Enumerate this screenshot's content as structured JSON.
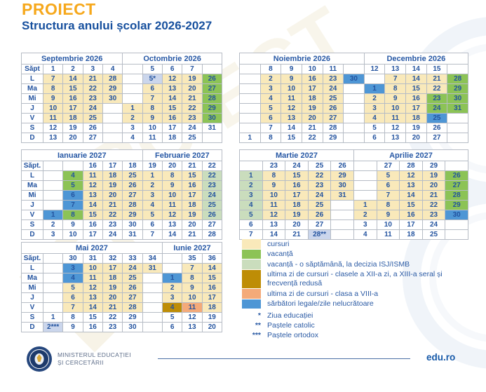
{
  "header": {
    "badge": "PROIECT",
    "title": "Structura anului școlar 2026-2027"
  },
  "watermark_text": "PROIECT",
  "colors": {
    "accent_orange": "#f6a81c",
    "title_blue": "#17509e",
    "table_text_blue": "#23539f",
    "cell_colors": {
      "y": "#f9e9ba",
      "g": "#8cc356",
      "lg": "#caddbd",
      "b": "#4e96d5",
      "lb": "#cbd6ec",
      "o": "#be8d06",
      "s": "#f4aa79"
    }
  },
  "calendars": [
    {
      "months": [
        {
          "label": "Septembrie 2026",
          "span": 5
        },
        {
          "label": "Octombrie 2026",
          "span": 5
        }
      ],
      "week_label": "Săpt",
      "day_labels": [
        "L",
        "Ma",
        "Mi",
        "J",
        "V",
        "S",
        "D"
      ],
      "week_row": [
        "1",
        "2",
        "3",
        "4",
        "",
        "5",
        "6",
        "7",
        ""
      ],
      "rows": [
        [
          "7|y",
          "14|y",
          "21|y",
          "28|y",
          "",
          "5*|lb",
          "12|y",
          "19|y",
          "26|g"
        ],
        [
          "8|y",
          "15|y",
          "22|y",
          "29|y",
          "",
          "6|y",
          "13|y",
          "20|y",
          "27|g"
        ],
        [
          "9|y",
          "16|y",
          "23|y",
          "30|y",
          "",
          "7|y",
          "14|y",
          "21|y",
          "28|g"
        ],
        [
          "10|y",
          "17|y",
          "24|y",
          "",
          "1|y",
          "8|y",
          "15|y",
          "22|y",
          "29|g"
        ],
        [
          "11|y",
          "18|y",
          "25|y",
          "",
          "2|y",
          "9|y",
          "16|y",
          "23|y",
          "30|g"
        ],
        [
          "12",
          "19",
          "26",
          "",
          "3",
          "10",
          "17",
          "24",
          "31"
        ],
        [
          "13",
          "20",
          "27",
          "",
          "4",
          "11",
          "18",
          "25",
          ""
        ]
      ]
    },
    {
      "months": [
        {
          "label": "Noiembrie 2026",
          "span": 6
        },
        {
          "label": "Decembrie 2026",
          "span": 5
        }
      ],
      "week_label": null,
      "day_labels": null,
      "week_row": [
        "",
        "8",
        "9",
        "10",
        "11",
        "",
        "12",
        "13",
        "14",
        "15",
        ""
      ],
      "rows": [
        [
          "",
          "2|y",
          "9|y",
          "16|y",
          "23|y",
          "30|b",
          "",
          "7|y",
          "14|y",
          "21|y",
          "28|g"
        ],
        [
          "",
          "3|y",
          "10|y",
          "17|y",
          "24|y",
          "",
          "1|b",
          "8|y",
          "15|y",
          "22|y",
          "29|g"
        ],
        [
          "",
          "4|y",
          "11|y",
          "18|y",
          "25|y",
          "",
          "2|y",
          "9|y",
          "16|y",
          "23|g",
          "30|g"
        ],
        [
          "",
          "5|y",
          "12|y",
          "19|y",
          "26|y",
          "",
          "3|y",
          "10|y",
          "17|y",
          "24|g",
          "31|g"
        ],
        [
          "",
          "6|y",
          "13|y",
          "20|y",
          "27|y",
          "",
          "4|y",
          "11|y",
          "18|y",
          "25|b",
          ""
        ],
        [
          "",
          "7",
          "14",
          "21",
          "28",
          "",
          "5",
          "12",
          "19",
          "26",
          ""
        ],
        [
          "1",
          "8",
          "15",
          "22",
          "29",
          "",
          "6",
          "13",
          "20",
          "27",
          ""
        ]
      ]
    },
    {
      "months": [
        {
          "label": "Ianuarie 2027",
          "span": 6
        },
        {
          "label": "Februarie 2027",
          "span": 4
        }
      ],
      "week_label": "Săpt.",
      "day_labels": [
        "L",
        "Ma",
        "Mi",
        "J",
        "V",
        "S",
        "D"
      ],
      "week_row": [
        "",
        "",
        "16",
        "17",
        "18",
        "19",
        "20",
        "21",
        "22"
      ],
      "rows": [
        [
          "",
          "4|g",
          "11|y",
          "18|y",
          "25|y",
          "1|y",
          "8|y",
          "15|y",
          "22|lg"
        ],
        [
          "",
          "5|g",
          "12|y",
          "19|y",
          "26|y",
          "2|y",
          "9|y",
          "16|y",
          "23|lg"
        ],
        [
          "",
          "6|b",
          "13|y",
          "20|y",
          "27|y",
          "3|y",
          "10|y",
          "17|y",
          "24|lg"
        ],
        [
          "",
          "7|b",
          "14|y",
          "21|y",
          "28|y",
          "4|y",
          "11|y",
          "18|y",
          "25|lg"
        ],
        [
          "1|b",
          "8|g",
          "15|y",
          "22|y",
          "29|y",
          "5|y",
          "12|y",
          "19|y",
          "26|lg"
        ],
        [
          "2",
          "9",
          "16",
          "23",
          "30",
          "6",
          "13",
          "20",
          "27"
        ],
        [
          "3",
          "10",
          "17",
          "24",
          "31",
          "7",
          "14",
          "21",
          "28"
        ]
      ]
    },
    {
      "months": [
        {
          "label": "Martie 2027",
          "span": 5
        },
        {
          "label": "Aprilie 2027",
          "span": 5
        }
      ],
      "week_label": null,
      "day_labels": null,
      "week_row": [
        "",
        "23",
        "24",
        "25",
        "26",
        "",
        "27",
        "28",
        "29",
        ""
      ],
      "rows": [
        [
          "1|lg",
          "8|y",
          "15|y",
          "22|y",
          "29|y",
          "",
          "5|y",
          "12|y",
          "19|y",
          "26|g"
        ],
        [
          "2|lg",
          "9|y",
          "16|y",
          "23|y",
          "30|y",
          "",
          "6|y",
          "13|y",
          "20|y",
          "27|g"
        ],
        [
          "3|lg",
          "10|y",
          "17|y",
          "24|y",
          "31|y",
          "",
          "7|y",
          "14|y",
          "21|y",
          "28|g"
        ],
        [
          "4|lg",
          "11|y",
          "18|y",
          "25|y",
          "",
          "1|y",
          "8|y",
          "15|y",
          "22|y",
          "29|g"
        ],
        [
          "5|lg",
          "12|y",
          "19|y",
          "26|y",
          "",
          "2|y",
          "9|y",
          "16|y",
          "23|y",
          "30|b"
        ],
        [
          "6",
          "13",
          "20",
          "27",
          "",
          "3",
          "10",
          "17",
          "24",
          ""
        ],
        [
          "7",
          "14",
          "21",
          "28**|lb",
          "",
          "4",
          "11",
          "18",
          "25",
          ""
        ]
      ]
    },
    {
      "months": [
        {
          "label": "Mai 2027",
          "span": 7
        },
        {
          "label": "Iunie 2027",
          "span": 3
        }
      ],
      "week_label": "Săpt.",
      "day_labels": [
        "L",
        "Ma",
        "Mi",
        "J",
        "V",
        "S",
        "D"
      ],
      "week_row": [
        "",
        "30",
        "31",
        "32",
        "33",
        "34",
        "",
        "35",
        "36"
      ],
      "rows": [
        [
          "",
          "3|b",
          "10|y",
          "17|y",
          "24|y",
          "31|y",
          "",
          "7|y",
          "14|y"
        ],
        [
          "",
          "4|b",
          "11|y",
          "18|y",
          "25|y",
          "",
          "1|b",
          "8|y",
          "15|y"
        ],
        [
          "",
          "5|y",
          "12|y",
          "19|y",
          "26|y",
          "",
          "2|y",
          "9|y",
          "16|y"
        ],
        [
          "",
          "6|y",
          "13|y",
          "20|y",
          "27|y",
          "",
          "3|y",
          "10|y",
          "17|y"
        ],
        [
          "",
          "7|y",
          "14|y",
          "21|y",
          "28|y",
          "",
          "4|o",
          "11|s",
          "18|y"
        ],
        [
          "1",
          "8",
          "15",
          "22",
          "29",
          "",
          "5",
          "12",
          "19"
        ],
        [
          "2***|lb",
          "9",
          "16",
          "23",
          "30",
          "",
          "6",
          "13",
          "20"
        ]
      ]
    }
  ],
  "legend": {
    "items": [
      {
        "color": "y",
        "label": "cursuri"
      },
      {
        "color": "g",
        "label": "vacanță"
      },
      {
        "color": "lg",
        "label": "vacanță - o săptămână, la decizia ISJ/ISMB"
      },
      {
        "color": "o",
        "label": "ultima zi de cursuri - clasele a XII-a zi, a XIII-a seral și frecvență redusă"
      },
      {
        "color": "s",
        "label": "ultima zi de cursuri - clasa a VIII-a"
      },
      {
        "color": "b",
        "label": "sărbători legale/zile nelucrătoare"
      }
    ],
    "notes": [
      {
        "symbol": "*",
        "label": "Ziua educației"
      },
      {
        "symbol": "**",
        "label": "Paștele catolic"
      },
      {
        "symbol": "***",
        "label": "Paștele ortodox"
      }
    ]
  },
  "footer": {
    "ministry_line1": "MINISTERUL EDUCAȚIEI",
    "ministry_line2": "ȘI CERCETĂRII",
    "site": "edu.ro"
  }
}
